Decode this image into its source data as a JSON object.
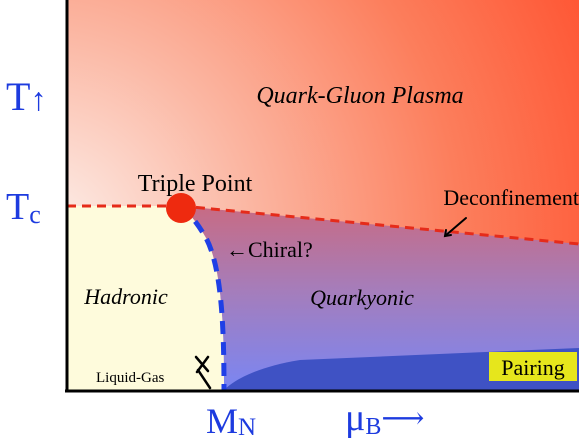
{
  "axes": {
    "y_symbol": "T",
    "y_arrow": "↑",
    "x_symbol": "μ",
    "x_subscript": "B",
    "x_arrow": "⟶",
    "tc_main": "T",
    "tc_sub": "c",
    "mn_main": "M",
    "mn_sub": "N"
  },
  "regions": {
    "qgp": "Quark-Gluon Plasma",
    "hadronic": "Hadronic",
    "quarkyonic": "Quarkyonic",
    "pairing": "Pairing"
  },
  "labels": {
    "triple_point": "Triple Point",
    "deconfinement": "Deconfinement",
    "chiral": "←Chiral?",
    "liquid_gas": "Liquid-Gas"
  },
  "colors": {
    "axis_text": "#1d3bdf",
    "qgp_hot": "#ff5a33",
    "hadronic_fill": "#fefbdc",
    "quarkyonic_fill": "#a278b9",
    "pairing_fill": "#3f52c4",
    "pairing_label_bg": "#e6e61c",
    "deconfinement_line": "#e52b1a",
    "chiral_line": "#1f3fe6",
    "triple_point": "#ee2a0f"
  }
}
